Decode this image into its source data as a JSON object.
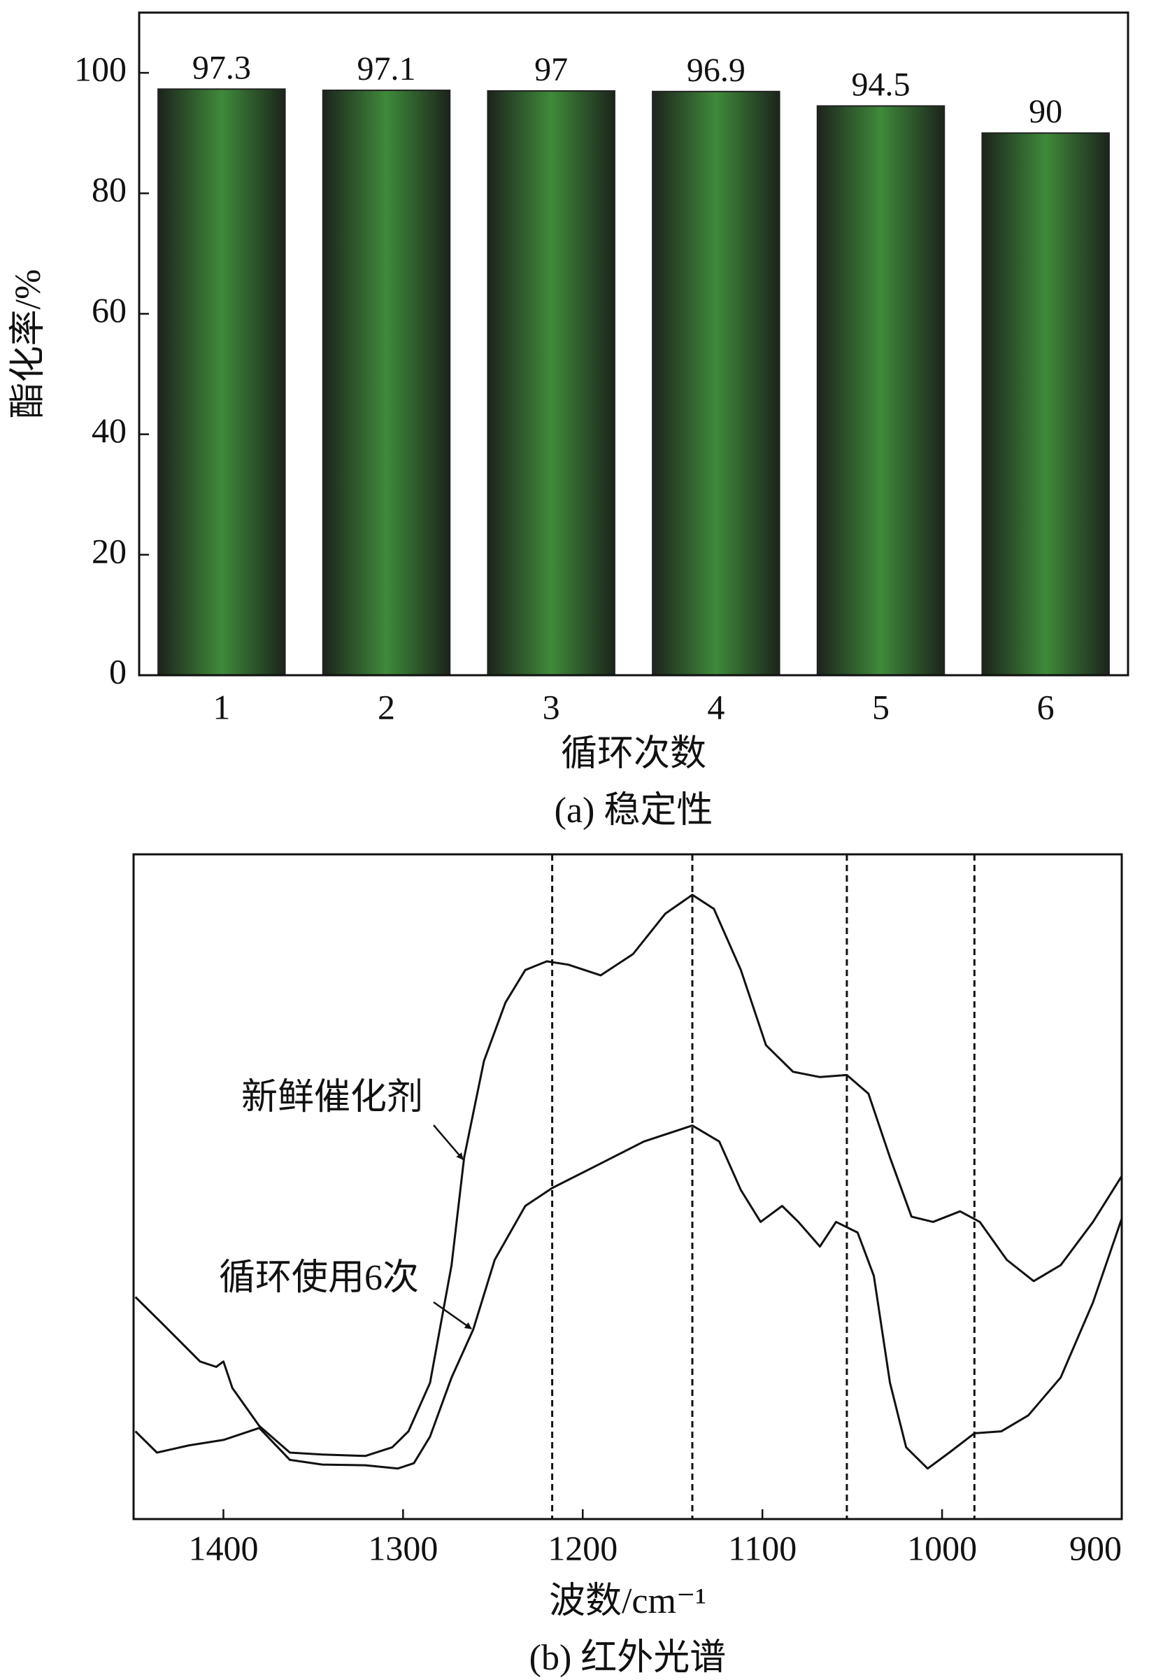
{
  "chart_data": [
    {
      "type": "bar",
      "categories": [
        "1",
        "2",
        "3",
        "4",
        "5",
        "6"
      ],
      "values": [
        97.3,
        97.1,
        97,
        96.9,
        94.5,
        90
      ],
      "ylim": [
        0,
        110
      ],
      "yticks": [
        0,
        20,
        40,
        60,
        80,
        100
      ],
      "x_label": "循环次数",
      "y_label": "酯化率/%",
      "caption": "(a) 稳定性",
      "color": "#3f8a3a"
    },
    {
      "type": "line",
      "xlim": [
        1450,
        900
      ],
      "xticks": [
        1400,
        1300,
        1200,
        1100,
        1000,
        900
      ],
      "ylim": [
        0,
        100
      ],
      "vlines": [
        1217,
        1139,
        1053,
        982
      ],
      "x_label": "波数/cm⁻¹",
      "caption": "(b) 红外光谱",
      "series": [
        {
          "name": "新鲜催化剂",
          "color": "#111111",
          "x": [
            1449,
            1434,
            1413,
            1404,
            1400,
            1395,
            1380,
            1363,
            1345,
            1321,
            1306,
            1297,
            1285,
            1273,
            1266,
            1255,
            1243,
            1232,
            1220,
            1208,
            1190,
            1172,
            1154,
            1139,
            1127,
            1112,
            1098,
            1083,
            1068,
            1053,
            1041,
            1029,
            1017,
            1005,
            990,
            979,
            964,
            949,
            934,
            916,
            900
          ],
          "values": [
            33.4,
            29.4,
            23.7,
            22.9,
            23.7,
            19.7,
            14.0,
            10.0,
            9.7,
            9.5,
            10.8,
            13.2,
            20.5,
            38.2,
            54.4,
            68.9,
            77.7,
            82.6,
            83.9,
            83.4,
            81.8,
            85.0,
            91.1,
            93.9,
            91.8,
            82.6,
            71.3,
            67.3,
            66.5,
            66.8,
            64.0,
            54.4,
            45.5,
            44.7,
            46.3,
            44.7,
            39.0,
            35.8,
            38.2,
            44.7,
            51.6
          ]
        },
        {
          "name": "循环使用6次",
          "color": "#111111",
          "x": [
            1449,
            1437,
            1419,
            1400,
            1380,
            1363,
            1345,
            1321,
            1303,
            1294,
            1285,
            1273,
            1261,
            1249,
            1232,
            1217,
            1190,
            1166,
            1139,
            1124,
            1112,
            1101,
            1089,
            1080,
            1068,
            1059,
            1047,
            1038,
            1029,
            1020,
            1008,
            996,
            982,
            967,
            952,
            934,
            916,
            900
          ],
          "values": [
            13.2,
            10.0,
            11.1,
            11.9,
            13.7,
            8.9,
            8.2,
            8.1,
            7.6,
            8.4,
            12.4,
            21.3,
            28.5,
            39.0,
            47.1,
            49.8,
            53.5,
            56.8,
            59.2,
            56.8,
            49.5,
            44.7,
            47.1,
            44.7,
            41.0,
            44.7,
            43.1,
            36.6,
            20.5,
            10.8,
            7.6,
            10.0,
            12.9,
            13.2,
            15.6,
            21.3,
            32.6,
            45.2
          ]
        }
      ]
    }
  ]
}
